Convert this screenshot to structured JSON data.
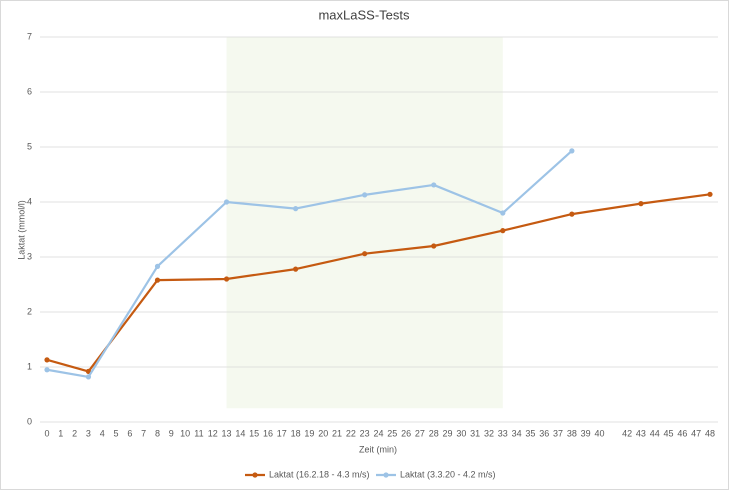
{
  "chart_data": {
    "type": "line",
    "title": "maxLaSS-Tests",
    "x_label": "Zeit (min)",
    "y_label": "Laktat (mmol/l)",
    "xlim": [
      0,
      48
    ],
    "xticks": [
      0,
      1,
      2,
      3,
      4,
      5,
      6,
      7,
      8,
      9,
      10,
      11,
      12,
      13,
      14,
      15,
      16,
      17,
      18,
      19,
      20,
      21,
      22,
      23,
      24,
      25,
      26,
      27,
      28,
      29,
      30,
      31,
      32,
      33,
      34,
      35,
      36,
      37,
      38,
      39,
      40,
      42,
      43,
      44,
      45,
      46,
      47,
      48
    ],
    "ylim": [
      0,
      7
    ],
    "yticks": [
      0,
      1,
      2,
      3,
      4,
      5,
      6,
      7
    ],
    "grid": true,
    "legend": "bottom",
    "highlight": {
      "x": [
        13,
        33
      ],
      "y": [
        0.25,
        7
      ],
      "color": "#f5f9ef"
    },
    "series": [
      {
        "name": "Laktat (16.2.18 - 4.3 m/s)",
        "color": "#c55a11",
        "x": [
          0,
          3,
          8,
          13,
          18,
          23,
          28,
          33,
          38,
          43,
          48
        ],
        "values": [
          1.13,
          0.92,
          2.58,
          2.6,
          2.78,
          3.06,
          3.2,
          3.48,
          3.78,
          3.97,
          4.14
        ]
      },
      {
        "name": "Laktat (3.3.20 - 4.2 m/s)",
        "color": "#9dc3e6",
        "x": [
          0,
          3,
          8,
          13,
          18,
          23,
          28,
          33,
          38
        ],
        "values": [
          0.95,
          0.82,
          2.83,
          4.0,
          3.88,
          4.13,
          4.31,
          3.8,
          4.93
        ]
      }
    ]
  }
}
